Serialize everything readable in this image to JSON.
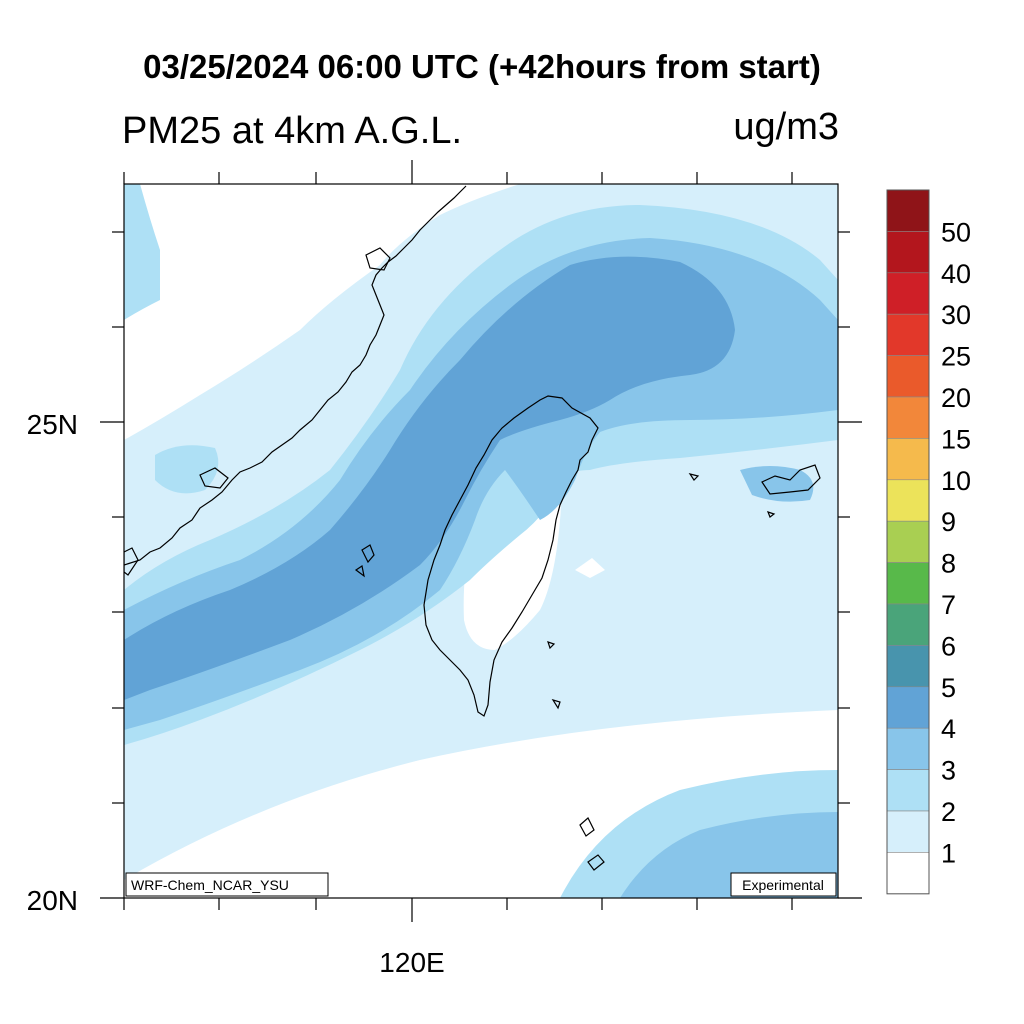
{
  "header": {
    "title": "03/25/2024 06:00 UTC (+42hours from start)",
    "subtitle": "PM25 at 4km A.G.L.",
    "units": "ug/m3"
  },
  "axes": {
    "lat_labels": [
      "25N",
      "20N"
    ],
    "lon_labels": [
      "120E"
    ]
  },
  "credits": {
    "model": "WRF-Chem_NCAR_YSU",
    "status": "Experimental"
  },
  "legend": {
    "levels": [
      {
        "label": "50",
        "color": "#8f1418"
      },
      {
        "label": "40",
        "color": "#b3161d"
      },
      {
        "label": "30",
        "color": "#cf1f27"
      },
      {
        "label": "25",
        "color": "#e2382a"
      },
      {
        "label": "20",
        "color": "#ea5a2b"
      },
      {
        "label": "15",
        "color": "#f2873a"
      },
      {
        "label": "10",
        "color": "#f5ba4c"
      },
      {
        "label": "9",
        "color": "#ece35a"
      },
      {
        "label": "8",
        "color": "#a9cf52"
      },
      {
        "label": "7",
        "color": "#58b94a"
      },
      {
        "label": "6",
        "color": "#4aa47a"
      },
      {
        "label": "5",
        "color": "#4894ad"
      },
      {
        "label": "4",
        "color": "#61a3d6"
      },
      {
        "label": "3",
        "color": "#88c5ea"
      },
      {
        "label": "2",
        "color": "#aee0f5"
      },
      {
        "label": "1",
        "color": "#d6effb"
      },
      {
        "label": "",
        "color": "#ffffff"
      }
    ]
  }
}
